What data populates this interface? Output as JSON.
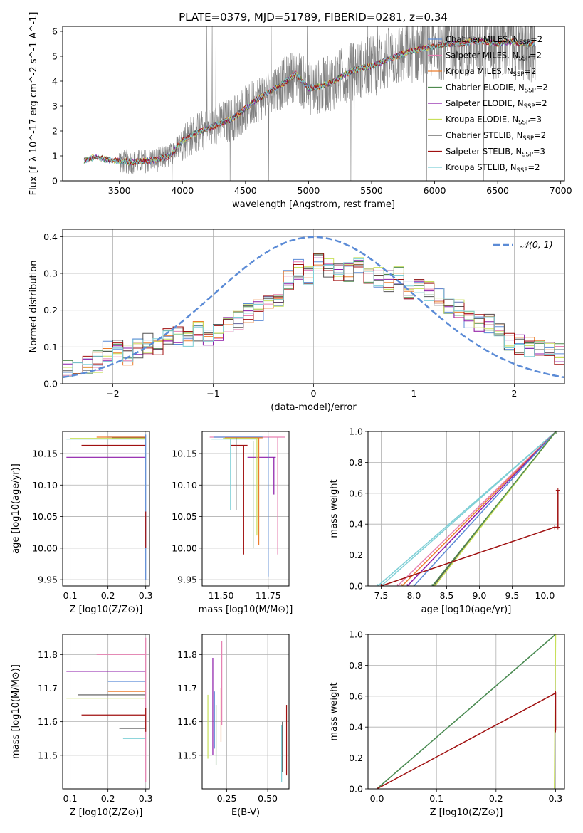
{
  "figure_title": "PLATE=0379, MJD=51789, FIBERID=0281, z=0.34",
  "colors": {
    "gray": "#808080",
    "blue": "#5b8bd6",
    "orange": "#ec7c2c",
    "green": "#4e8a4e",
    "purple": "#8b1aa8",
    "yellow": "#c8e05a",
    "dark": "#555555",
    "red": "#a01010",
    "cyan": "#7ecfd6",
    "pink": "#e67fb0"
  },
  "chart_data": [
    {
      "id": "spectrum",
      "type": "line",
      "title": "PLATE=0379, MJD=51789, FIBERID=0281, z=0.34",
      "xlabel": "wavelength [Angstrom, rest frame]",
      "ylabel": "Flux [f_λ 10^-17 erg cm^-2 s^-1 A^-1]",
      "xlim": [
        3050,
        7030
      ],
      "ylim": [
        0,
        6.2
      ],
      "xticks": [
        3500,
        4000,
        4500,
        5000,
        5500,
        6000,
        6500,
        7000
      ],
      "yticks": [
        0,
        1,
        2,
        3,
        4,
        5,
        6
      ],
      "grid": false,
      "legend_position": "top-right",
      "data_range_x": [
        3220,
        6800
      ],
      "continuum": {
        "x": [
          3220,
          3300,
          3400,
          3500,
          3600,
          3700,
          3800,
          3900,
          4000,
          4100,
          4200,
          4300,
          4400,
          4500,
          4600,
          4700,
          4800,
          4900,
          5000,
          5100,
          5200,
          5300,
          5400,
          5500,
          5600,
          5700,
          5800,
          5900,
          6000,
          6100,
          6200,
          6300,
          6400,
          6500,
          6600,
          6700,
          6800
        ],
        "y": [
          0.8,
          0.95,
          0.85,
          0.8,
          0.75,
          0.8,
          0.85,
          1.0,
          1.6,
          1.9,
          2.1,
          2.3,
          2.5,
          2.9,
          3.3,
          3.6,
          3.9,
          4.3,
          3.7,
          3.8,
          4.0,
          4.3,
          4.5,
          4.6,
          4.8,
          5.0,
          5.2,
          5.3,
          5.4,
          5.5,
          5.5,
          5.6,
          5.6,
          5.5,
          5.6,
          5.5,
          5.5
        ]
      },
      "legend": [
        {
          "label": "Chabrier MILES, N",
          "sub": "SSP",
          "suffix": "=2",
          "color": "blue"
        },
        {
          "label": "Salpeter MILES, N",
          "sub": "SSP",
          "suffix": "=2",
          "color": "pink"
        },
        {
          "label": "Kroupa MILES, N",
          "sub": "SSP",
          "suffix": "=2",
          "color": "orange"
        },
        {
          "label": "Chabrier ELODIE, N",
          "sub": "SSP",
          "suffix": "=2",
          "color": "green"
        },
        {
          "label": "Salpeter ELODIE, N",
          "sub": "SSP",
          "suffix": "=2",
          "color": "purple"
        },
        {
          "label": "Kroupa ELODIE, N",
          "sub": "SSP",
          "suffix": "=3",
          "color": "yellow"
        },
        {
          "label": "Chabrier STELIB, N",
          "sub": "SSP",
          "suffix": "=2",
          "color": "dark"
        },
        {
          "label": "Salpeter STELIB, N",
          "sub": "SSP",
          "suffix": "=3",
          "color": "red"
        },
        {
          "label": "Kroupa STELIB, N",
          "sub": "SSP",
          "suffix": "=2",
          "color": "cyan"
        }
      ]
    },
    {
      "id": "residuals",
      "type": "line",
      "xlabel": "(data-model)/error",
      "ylabel": "Normed distribution",
      "xlim": [
        -2.5,
        2.5
      ],
      "ylim": [
        0,
        0.42
      ],
      "xticks": [
        -2,
        -1,
        0,
        1,
        2
      ],
      "yticks": [
        0.0,
        0.1,
        0.2,
        0.3,
        0.4
      ],
      "grid": true,
      "legend_position": "top-right",
      "legend_label": "𝒩(0, 1)",
      "legend_color": "blue",
      "bins": {
        "start": -2.5,
        "width": 0.1,
        "count": 50
      },
      "base_hist": [
        0.04,
        0.045,
        0.05,
        0.06,
        0.09,
        0.1,
        0.08,
        0.1,
        0.11,
        0.1,
        0.12,
        0.13,
        0.12,
        0.14,
        0.12,
        0.14,
        0.16,
        0.17,
        0.19,
        0.2,
        0.22,
        0.23,
        0.28,
        0.31,
        0.3,
        0.33,
        0.32,
        0.31,
        0.3,
        0.32,
        0.3,
        0.29,
        0.28,
        0.29,
        0.26,
        0.27,
        0.25,
        0.24,
        0.22,
        0.2,
        0.18,
        0.17,
        0.16,
        0.14,
        0.12,
        0.11,
        0.1,
        0.09,
        0.09,
        0.08
      ],
      "series_colors": [
        "blue",
        "pink",
        "orange",
        "green",
        "purple",
        "yellow",
        "dark",
        "red",
        "cyan"
      ]
    },
    {
      "id": "age-vs-Z",
      "type": "scatter",
      "xlabel": "Z [log10(Z/Z⊙)]",
      "ylabel": "age [log10(age/yr)]",
      "xlim": [
        0.08,
        0.31
      ],
      "ylim": [
        9.94,
        10.185
      ],
      "xticks": [
        0.1,
        0.2,
        0.3
      ],
      "yticks": [
        9.95,
        10.0,
        10.05,
        10.1,
        10.15
      ],
      "grid": true,
      "hlines": [
        {
          "y": 10.176,
          "x0": 0.2,
          "x1": 0.3,
          "color": "blue"
        },
        {
          "y": 10.175,
          "x0": 0.21,
          "x1": 0.3,
          "color": "dark"
        },
        {
          "y": 10.176,
          "x0": 0.17,
          "x1": 0.3,
          "color": "orange"
        },
        {
          "y": 10.174,
          "x0": 0.1,
          "x1": 0.3,
          "color": "yellow"
        },
        {
          "y": 10.173,
          "x0": 0.09,
          "x1": 0.3,
          "color": "cyan"
        },
        {
          "y": 10.163,
          "x0": 0.13,
          "x1": 0.3,
          "color": "red"
        },
        {
          "y": 10.144,
          "x0": 0.09,
          "x1": 0.3,
          "color": "purple"
        }
      ],
      "vlines": [
        {
          "x": 0.3,
          "y0": 9.95,
          "y1": 10.18,
          "color": "blue"
        },
        {
          "x": 0.3,
          "y0": 10.0,
          "y1": 10.058,
          "color": "red"
        }
      ]
    },
    {
      "id": "age-vs-mass",
      "type": "scatter",
      "xlabel": "mass [log10(M/M⊙)]",
      "ylabel": "",
      "xlim": [
        11.4,
        11.86
      ],
      "ylim": [
        9.94,
        10.185
      ],
      "xticks": [
        11.5,
        11.75
      ],
      "yticks": [
        9.95,
        10.0,
        10.05,
        10.1,
        10.15
      ],
      "grid": true,
      "hlines": [
        {
          "y": 10.176,
          "x0": 11.44,
          "x1": 11.84,
          "color": "pink"
        },
        {
          "y": 10.176,
          "x0": 11.46,
          "x1": 11.72,
          "color": "blue"
        },
        {
          "y": 10.175,
          "x0": 11.52,
          "x1": 11.72,
          "color": "orange"
        },
        {
          "y": 10.174,
          "x0": 11.51,
          "x1": 11.7,
          "color": "yellow"
        },
        {
          "y": 10.173,
          "x0": 11.45,
          "x1": 11.69,
          "color": "cyan"
        },
        {
          "y": 10.163,
          "x0": 11.55,
          "x1": 11.64,
          "color": "red"
        },
        {
          "y": 10.144,
          "x0": 11.64,
          "x1": 11.79,
          "color": "purple"
        }
      ],
      "vlines": [
        {
          "x": 11.8,
          "y0": 9.99,
          "y1": 10.176,
          "color": "pink"
        },
        {
          "x": 11.75,
          "y0": 9.955,
          "y1": 10.176,
          "color": "blue"
        },
        {
          "x": 11.7,
          "y0": 10.005,
          "y1": 10.175,
          "color": "orange"
        },
        {
          "x": 11.69,
          "y0": 10.02,
          "y1": 10.174,
          "color": "yellow"
        },
        {
          "x": 11.67,
          "y0": 10.0,
          "y1": 10.17,
          "color": "green"
        },
        {
          "x": 11.62,
          "y0": 9.99,
          "y1": 10.163,
          "color": "red"
        },
        {
          "x": 11.55,
          "y0": 10.06,
          "y1": 10.173,
          "color": "cyan"
        },
        {
          "x": 11.58,
          "y0": 10.06,
          "y1": 10.175,
          "color": "dark"
        },
        {
          "x": 11.78,
          "y0": 10.085,
          "y1": 10.144,
          "color": "purple"
        }
      ]
    },
    {
      "id": "mass-weight-vs-age",
      "type": "line",
      "xlabel": "age [log10(age/yr)]",
      "ylabel": "mass weight",
      "xlim": [
        7.3,
        10.3
      ],
      "ylim": [
        0,
        1.0
      ],
      "xticks": [
        7.5,
        8.0,
        8.5,
        9.0,
        9.5,
        10.0
      ],
      "yticks": [
        0.0,
        0.2,
        0.4,
        0.6,
        0.8,
        1.0
      ],
      "grid": true,
      "lines": [
        {
          "color": "cyan",
          "x": [
            7.5,
            10.17
          ],
          "y": [
            0.0,
            1.0
          ]
        },
        {
          "color": "cyan",
          "x": [
            7.45,
            10.17
          ],
          "y": [
            0.0,
            1.0
          ]
        },
        {
          "color": "pink",
          "x": [
            7.75,
            10.17
          ],
          "y": [
            0.0,
            1.0
          ]
        },
        {
          "color": "orange",
          "x": [
            7.82,
            10.17
          ],
          "y": [
            0.0,
            1.0
          ]
        },
        {
          "color": "purple",
          "x": [
            7.9,
            10.17
          ],
          "y": [
            0.0,
            1.0
          ]
        },
        {
          "color": "blue",
          "x": [
            8.0,
            10.17
          ],
          "y": [
            0.0,
            1.0
          ]
        },
        {
          "color": "dark",
          "x": [
            8.3,
            10.17
          ],
          "y": [
            0.0,
            1.0
          ]
        },
        {
          "color": "yellow",
          "x": [
            8.32,
            10.17
          ],
          "y": [
            0.0,
            1.0
          ]
        },
        {
          "color": "green",
          "x": [
            8.28,
            10.17
          ],
          "y": [
            0.0,
            1.0
          ]
        },
        {
          "color": "red",
          "x": [
            7.5,
            10.15,
            10.2,
            10.2
          ],
          "y": [
            0.0,
            0.38,
            0.38,
            0.62
          ]
        }
      ]
    },
    {
      "id": "mass-vs-Z",
      "type": "scatter",
      "xlabel": "Z [log10(Z/Z⊙)]",
      "ylabel": "mass [log10(M/M⊙)]",
      "xlim": [
        0.08,
        0.31
      ],
      "ylim": [
        11.4,
        11.86
      ],
      "xticks": [
        0.1,
        0.2,
        0.3
      ],
      "yticks": [
        11.5,
        11.6,
        11.7,
        11.8
      ],
      "grid": true,
      "hlines": [
        {
          "y": 11.8,
          "x0": 0.17,
          "x1": 0.3,
          "color": "pink"
        },
        {
          "y": 11.75,
          "x0": 0.09,
          "x1": 0.3,
          "color": "purple"
        },
        {
          "y": 11.72,
          "x0": 0.2,
          "x1": 0.3,
          "color": "blue"
        },
        {
          "y": 11.69,
          "x0": 0.2,
          "x1": 0.3,
          "color": "orange"
        },
        {
          "y": 11.68,
          "x0": 0.12,
          "x1": 0.3,
          "color": "dark"
        },
        {
          "y": 11.67,
          "x0": 0.09,
          "x1": 0.3,
          "color": "yellow"
        },
        {
          "y": 11.62,
          "x0": 0.13,
          "x1": 0.3,
          "color": "red"
        },
        {
          "y": 11.58,
          "x0": 0.23,
          "x1": 0.3,
          "color": "dark"
        },
        {
          "y": 11.55,
          "x0": 0.24,
          "x1": 0.3,
          "color": "cyan"
        }
      ],
      "vlines": [
        {
          "x": 0.3,
          "y0": 11.42,
          "y1": 11.85,
          "color": "pink"
        },
        {
          "x": 0.3,
          "y0": 11.57,
          "y1": 11.64,
          "color": "red"
        }
      ]
    },
    {
      "id": "mass-vs-ebv",
      "type": "scatter",
      "xlabel": "E(B-V)",
      "ylabel": "",
      "xlim": [
        0.1,
        0.63
      ],
      "ylim": [
        11.4,
        11.86
      ],
      "xticks": [
        0.25,
        0.5
      ],
      "yticks": [
        11.5,
        11.6,
        11.7,
        11.8
      ],
      "grid": true,
      "vlines": [
        {
          "x": 0.135,
          "y0": 11.49,
          "y1": 11.68,
          "color": "yellow"
        },
        {
          "x": 0.165,
          "y0": 11.5,
          "y1": 11.79,
          "color": "purple"
        },
        {
          "x": 0.175,
          "y0": 11.52,
          "y1": 11.69,
          "color": "blue"
        },
        {
          "x": 0.185,
          "y0": 11.47,
          "y1": 11.65,
          "color": "green"
        },
        {
          "x": 0.215,
          "y0": 11.54,
          "y1": 11.7,
          "color": "orange"
        },
        {
          "x": 0.22,
          "y0": 11.59,
          "y1": 11.84,
          "color": "pink"
        },
        {
          "x": 0.585,
          "y0": 11.42,
          "y1": 11.59,
          "color": "cyan"
        },
        {
          "x": 0.59,
          "y0": 11.45,
          "y1": 11.6,
          "color": "dark"
        },
        {
          "x": 0.615,
          "y0": 11.44,
          "y1": 11.65,
          "color": "red"
        }
      ]
    },
    {
      "id": "mass-weight-vs-Z",
      "type": "line",
      "xlabel": "Z [log10(Z/Z⊙)]",
      "ylabel": "mass weight",
      "xlim": [
        -0.015,
        0.315
      ],
      "ylim": [
        0,
        1.0
      ],
      "xticks": [
        0.0,
        0.1,
        0.2,
        0.3
      ],
      "yticks": [
        0.0,
        0.2,
        0.4,
        0.6,
        0.8,
        1.0
      ],
      "grid": true,
      "lines": [
        {
          "color": "cyan",
          "x": [
            0.0,
            0.3
          ],
          "y": [
            0.0,
            1.0
          ]
        },
        {
          "color": "green",
          "x": [
            0.0,
            0.3
          ],
          "y": [
            0.0,
            1.0
          ]
        },
        {
          "color": "yellow",
          "x": [
            0.298,
            0.3
          ],
          "y": [
            0.0,
            1.0
          ]
        },
        {
          "color": "red",
          "x": [
            0.0,
            0.3,
            0.3
          ],
          "y": [
            0.0,
            0.62,
            0.38
          ]
        }
      ]
    }
  ]
}
